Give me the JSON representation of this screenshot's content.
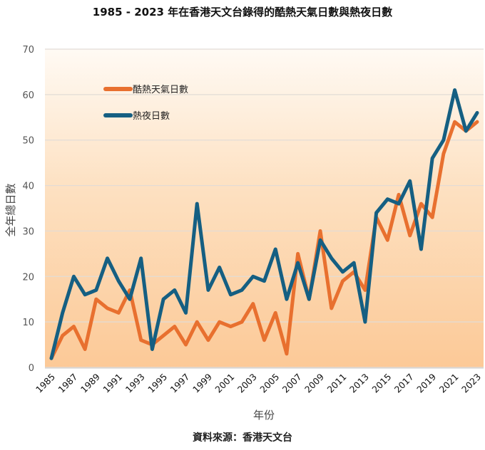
{
  "title": "1985 - 2023 年在香港天文台錄得的酷熱天氣日數與熱夜日數",
  "source": "資料來源：香港天文台",
  "chart_data": {
    "type": "line",
    "title": "1985 - 2023 年在香港天文台錄得的酷熱天氣日數與熱夜日數",
    "xlabel": "年份",
    "ylabel": "全年總日數",
    "ylim": [
      0,
      70
    ],
    "yticks": [
      0,
      10,
      20,
      30,
      40,
      50,
      60,
      70
    ],
    "xticks": [
      1985,
      1987,
      1989,
      1991,
      1993,
      1995,
      1997,
      1999,
      2001,
      2003,
      2005,
      2007,
      2009,
      2011,
      2013,
      2015,
      2017,
      2019,
      2021,
      2023
    ],
    "grid": true,
    "legend": "top-left",
    "x": [
      1985,
      1986,
      1987,
      1988,
      1989,
      1990,
      1991,
      1992,
      1993,
      1994,
      1995,
      1996,
      1997,
      1998,
      1999,
      2000,
      2001,
      2002,
      2003,
      2004,
      2005,
      2006,
      2007,
      2008,
      2009,
      2010,
      2011,
      2012,
      2013,
      2014,
      2015,
      2016,
      2017,
      2018,
      2019,
      2020,
      2021,
      2022,
      2023
    ],
    "series": [
      {
        "name": "酷熱天氣日數",
        "color": "#e8702f",
        "values": [
          2,
          7,
          9,
          4,
          15,
          13,
          12,
          17,
          6,
          5,
          7,
          9,
          5,
          10,
          6,
          10,
          9,
          10,
          14,
          6,
          12,
          3,
          25,
          15,
          30,
          13,
          19,
          21,
          17,
          33,
          28,
          38,
          29,
          36,
          33,
          47,
          54,
          52,
          54
        ]
      },
      {
        "name": "熱夜日數",
        "color": "#155f82",
        "values": [
          2,
          12,
          20,
          16,
          17,
          24,
          19,
          15,
          24,
          4,
          15,
          17,
          12,
          36,
          17,
          22,
          16,
          17,
          20,
          19,
          26,
          15,
          23,
          15,
          28,
          24,
          21,
          23,
          10,
          34,
          37,
          36,
          41,
          26,
          46,
          50,
          61,
          52,
          56
        ]
      }
    ]
  }
}
